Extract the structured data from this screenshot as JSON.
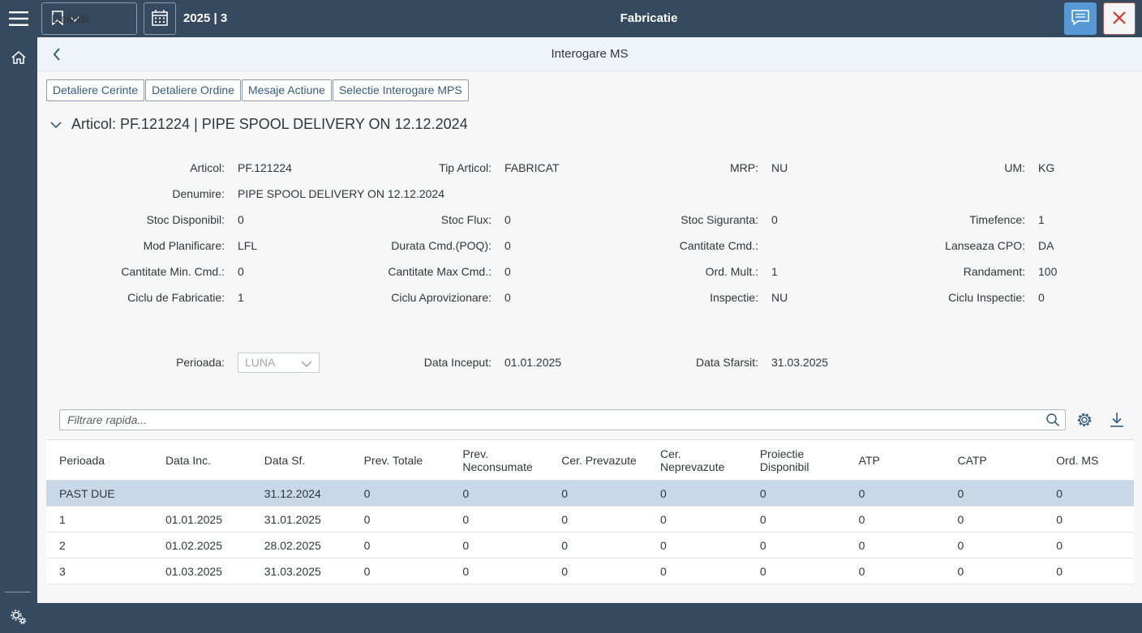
{
  "shell": {
    "definitions_label": "Definitii",
    "period": "2025 | 3",
    "title": "Fabricatie"
  },
  "subheader": {
    "title": "Interogare MS"
  },
  "actions": [
    "Detaliere Cerinte",
    "Detaliere Ordine",
    "Mesaje Actiune",
    "Selectie Interogare MPS"
  ],
  "section": {
    "title": "Articol: PF.121224 | PIPE SPOOL DELIVERY ON 12.12.2024"
  },
  "form": {
    "articol_l": "Articol:",
    "articol_v": "PF.121224",
    "tip_l": "Tip Articol:",
    "tip_v": "FABRICAT",
    "mrp_l": "MRP:",
    "mrp_v": "NU",
    "um_l": "UM:",
    "um_v": "KG",
    "denumire_l": "Denumire:",
    "denumire_v": "PIPE SPOOL DELIVERY ON 12.12.2024",
    "stocdisp_l": "Stoc Disponibil:",
    "stocdisp_v": "0",
    "stocflux_l": "Stoc Flux:",
    "stocflux_v": "0",
    "stocsig_l": "Stoc Siguranta:",
    "stocsig_v": "0",
    "timefence_l": "Timefence:",
    "timefence_v": "1",
    "modplan_l": "Mod Planificare:",
    "modplan_v": "LFL",
    "durata_l": "Durata Cmd.(POQ):",
    "durata_v": "0",
    "cantcmd_l": "Cantitate Cmd.:",
    "cantcmd_v": "",
    "lanseaza_l": "Lanseaza CPO:",
    "lanseaza_v": "DA",
    "cantmin_l": "Cantitate Min. Cmd.:",
    "cantmin_v": "0",
    "cantmax_l": "Cantitate Max Cmd.:",
    "cantmax_v": "0",
    "ordmult_l": "Ord. Mult.:",
    "ordmult_v": "1",
    "randament_l": "Randament:",
    "randament_v": "100",
    "ciclufab_l": "Ciclu de Fabricatie:",
    "ciclufab_v": "1",
    "cicluapro_l": "Ciclu Aprovizionare:",
    "cicluapro_v": "0",
    "inspectie_l": "Inspectie:",
    "inspectie_v": "NU",
    "cicluinsp_l": "Ciclu Inspectie:",
    "cicluinsp_v": "0",
    "perioada_l": "Perioada:",
    "perioada_v": "LUNA",
    "datainc_l": "Data Inceput:",
    "datainc_v": "01.01.2025",
    "datasf_l": "Data Sfarsit:",
    "datasf_v": "31.03.2025"
  },
  "table": {
    "search_placeholder": "Filtrare rapida...",
    "headers": [
      "Perioada",
      "Data Inc.",
      "Data Sf.",
      "Prev. Totale",
      "Prev. Neconsumate",
      "Cer. Prevazute",
      "Cer. Neprevazute",
      "Proiectie Disponibil",
      "ATP",
      "CATP",
      "Ord. MS"
    ],
    "rows": [
      [
        "PAST DUE",
        "",
        "31.12.2024",
        "0",
        "0",
        "0",
        "0",
        "0",
        "0",
        "0",
        "0"
      ],
      [
        "1",
        "01.01.2025",
        "31.01.2025",
        "0",
        "0",
        "0",
        "0",
        "0",
        "0",
        "0",
        "0"
      ],
      [
        "2",
        "01.02.2025",
        "28.02.2025",
        "0",
        "0",
        "0",
        "0",
        "0",
        "0",
        "0",
        "0"
      ],
      [
        "3",
        "01.03.2025",
        "31.03.2025",
        "0",
        "0",
        "0",
        "0",
        "0",
        "0",
        "0",
        "0"
      ]
    ]
  }
}
